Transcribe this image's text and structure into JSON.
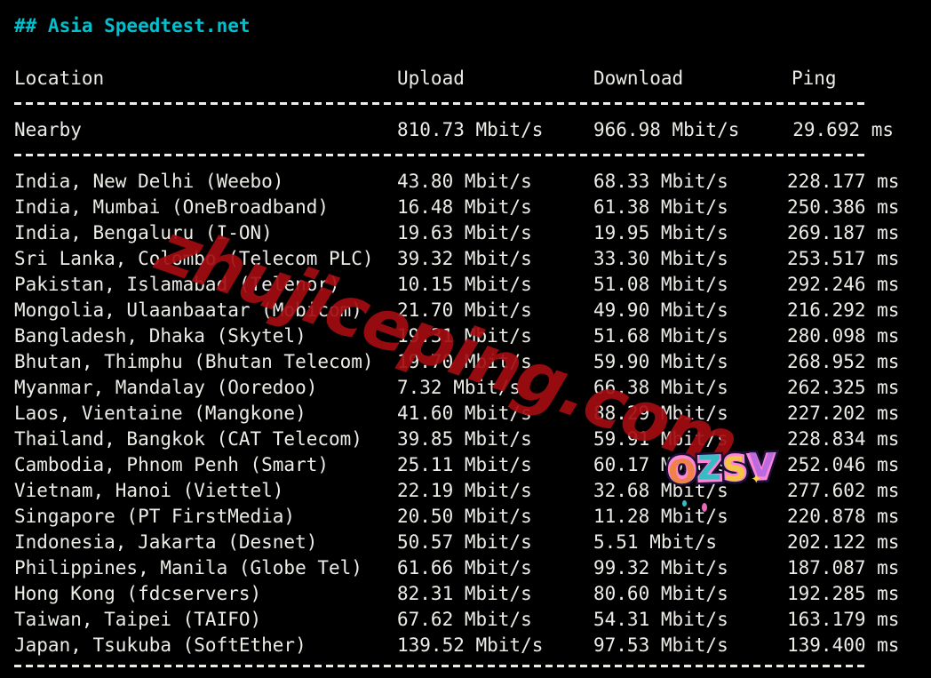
{
  "title": "## Asia Speedtest.net",
  "colors": {
    "background": "#000000",
    "text": "#edece7",
    "accent": "#00c0cf",
    "watermark": "#a30d11"
  },
  "table": {
    "headers": {
      "location": "Location",
      "upload": "Upload",
      "download": "Download",
      "ping": "Ping"
    },
    "units": {
      "speed": "Mbit/s",
      "ping": "ms"
    },
    "nearby_row": {
      "location": "Nearby",
      "upload": "810.73",
      "download": "966.98",
      "ping": "29.692"
    },
    "rows": [
      {
        "location": "India, New Delhi (Weebo)",
        "upload": "43.80",
        "download": "68.33",
        "ping": "228.177"
      },
      {
        "location": "India, Mumbai (OneBroadband)",
        "upload": "16.48",
        "download": "61.38",
        "ping": "250.386"
      },
      {
        "location": "India, Bengaluru (I-ON)",
        "upload": "19.63",
        "download": "19.95",
        "ping": "269.187"
      },
      {
        "location": "Sri Lanka, Colombo (Telecom PLC)",
        "upload": "39.32",
        "download": "33.30",
        "ping": "253.517"
      },
      {
        "location": "Pakistan, Islamabad (Telenor)",
        "upload": "10.15",
        "download": "51.08",
        "ping": "292.246"
      },
      {
        "location": "Mongolia, Ulaanbaatar (Mobicom)",
        "upload": "21.70",
        "download": "49.90",
        "ping": "216.292"
      },
      {
        "location": "Bangladesh, Dhaka (Skytel)",
        "upload": "19.31",
        "download": "51.68",
        "ping": "280.098"
      },
      {
        "location": "Bhutan, Thimphu (Bhutan Telecom)",
        "upload": "19.70",
        "download": "59.90",
        "ping": "268.952"
      },
      {
        "location": "Myanmar, Mandalay (Ooredoo)",
        "upload": "7.32",
        "download": "66.38",
        "ping": "262.325"
      },
      {
        "location": "Laos, Vientaine (Mangkone)",
        "upload": "41.60",
        "download": "88.29",
        "ping": "227.202"
      },
      {
        "location": "Thailand, Bangkok (CAT Telecom)",
        "upload": "39.85",
        "download": "59.91",
        "ping": "228.834"
      },
      {
        "location": "Cambodia, Phnom Penh (Smart)",
        "upload": "25.11",
        "download": "60.17",
        "ping": "252.046"
      },
      {
        "location": "Vietnam, Hanoi (Viettel)",
        "upload": "22.19",
        "download": "32.68",
        "ping": "277.602"
      },
      {
        "location": "Singapore (PT FirstMedia)",
        "upload": "20.50",
        "download": "11.28",
        "ping": "220.878"
      },
      {
        "location": "Indonesia, Jakarta (Desnet)",
        "upload": "50.57",
        "download": "5.51",
        "ping": "202.122"
      },
      {
        "location": "Philippines, Manila (Globe Tel)",
        "upload": "61.66",
        "download": "99.32",
        "ping": "187.087"
      },
      {
        "location": "Hong Kong (fdcservers)",
        "upload": "82.31",
        "download": "80.60",
        "ping": "192.285"
      },
      {
        "location": "Taiwan, Taipei (TAIFO)",
        "upload": "67.62",
        "download": "54.31",
        "ping": "163.179"
      },
      {
        "location": "Japan, Tsukuba (SoftEther)",
        "upload": "139.52",
        "download": "97.53",
        "ping": "139.400"
      }
    ]
  },
  "watermark": {
    "text": "zhujiceping.com"
  },
  "sticker": {
    "text": "OZSV"
  },
  "icons": {
    "sparkle": "✦"
  }
}
